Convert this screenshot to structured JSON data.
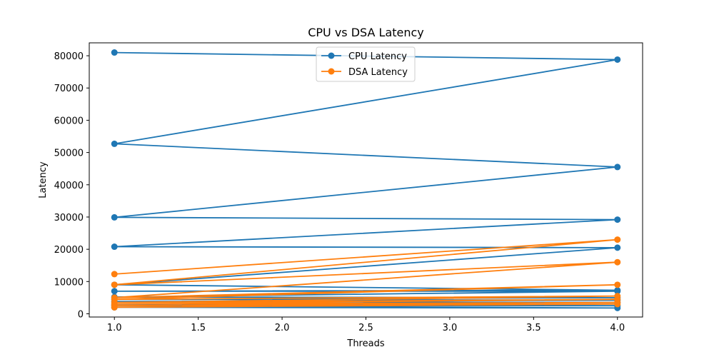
{
  "chart_data": {
    "type": "line",
    "title": "CPU vs DSA Latency",
    "xlabel": "Threads",
    "ylabel": "Latency",
    "xlim": [
      0.85,
      4.15
    ],
    "ylim": [
      -1000,
      84000
    ],
    "xticks": [
      1.0,
      1.5,
      2.0,
      2.5,
      3.0,
      3.5,
      4.0
    ],
    "xtick_labels": [
      "1.0",
      "1.5",
      "2.0",
      "2.5",
      "3.0",
      "3.5",
      "4.0"
    ],
    "yticks": [
      0,
      10000,
      20000,
      30000,
      40000,
      50000,
      60000,
      70000,
      80000
    ],
    "ytick_labels": [
      "0",
      "10000",
      "20000",
      "30000",
      "40000",
      "50000",
      "60000",
      "70000",
      "80000"
    ],
    "grid": false,
    "legend_position": "top-center",
    "series": [
      {
        "name": "CPU Latency",
        "color": "#1f77b4",
        "x": [
          1,
          4,
          1,
          4,
          1,
          4,
          1,
          4,
          1,
          4,
          1,
          4,
          1,
          4,
          1,
          4,
          1,
          4,
          1,
          4,
          1,
          4,
          1
        ],
        "y": [
          81000,
          78800,
          52700,
          45500,
          29900,
          29200,
          20800,
          20500,
          9000,
          7300,
          7000,
          7000,
          5200,
          5000,
          4500,
          4200,
          3800,
          3500,
          3000,
          2500,
          2500,
          1800,
          2000
        ]
      },
      {
        "name": "DSA Latency",
        "color": "#ff7f0e",
        "x": [
          1,
          4,
          1,
          4,
          1,
          4,
          1,
          4,
          1,
          4,
          1,
          4,
          1,
          4,
          1
        ],
        "y": [
          12300,
          23000,
          9000,
          16000,
          5000,
          9000,
          4500,
          5500,
          3500,
          4500,
          3000,
          3500,
          2500,
          3000,
          2000
        ]
      }
    ]
  }
}
